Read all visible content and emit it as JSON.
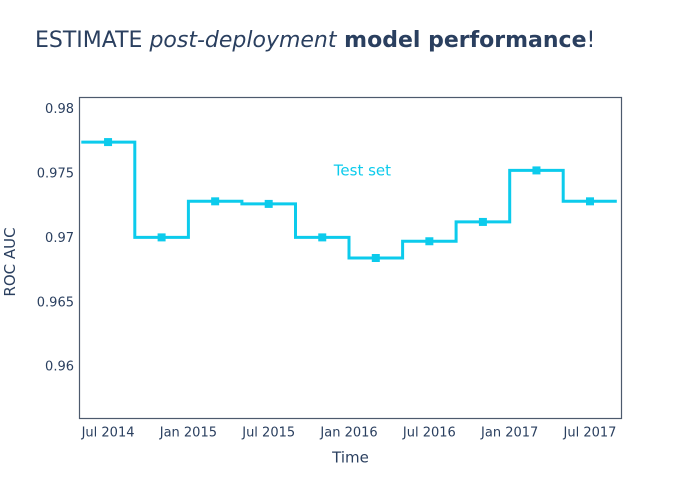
{
  "title": {
    "prefix": "ESTIMATE ",
    "italic": "post-deployment",
    "bold": " model performance",
    "suffix": "!",
    "color": "#2a3f5f"
  },
  "colors": {
    "line": "#0ccbec",
    "text": "#2a3f5f",
    "plot_border": "#4d5a6d",
    "background": "#ffffff"
  },
  "chart_data": {
    "type": "line",
    "line_shape": "step-hv",
    "marker": "square",
    "title": "",
    "xlabel": "Time",
    "ylabel": "ROC AUC",
    "grid": false,
    "legend": "none",
    "xlim_months_from_jul2014": [
      -2.17,
      38.39
    ],
    "ylim": [
      0.9559,
      0.9809
    ],
    "x_ticks": {
      "months_from_jul2014": [
        0,
        6,
        12,
        18,
        24,
        30,
        36
      ],
      "labels": [
        "Jul 2014",
        "Jan 2015",
        "Jul 2015",
        "Jan 2016",
        "Jul 2016",
        "Jan 2017",
        "Jul 2017"
      ]
    },
    "y_ticks": {
      "values": [
        0.98,
        0.975,
        0.97,
        0.965,
        0.96
      ],
      "labels": [
        "0.98",
        "0.975",
        "0.97",
        "0.965",
        "0.96"
      ]
    },
    "series": [
      {
        "name": "Test set",
        "color": "#0ccbec",
        "chunk_span_months": 4,
        "x_months_from_jul2014": [
          0,
          4,
          8,
          12,
          16,
          20,
          24,
          28,
          32,
          36
        ],
        "x_labels": [
          "Jul 2014",
          "Nov 2014",
          "Mar 2015",
          "Jul 2015",
          "Nov 2015",
          "Mar 2016",
          "Jul 2016",
          "Nov 2016",
          "Mar 2017",
          "Jul 2017"
        ],
        "values": [
          0.9774,
          0.97,
          0.9728,
          0.9726,
          0.97,
          0.9684,
          0.9697,
          0.9712,
          0.9752,
          0.9728
        ]
      }
    ],
    "annotation": {
      "text": "Test set",
      "x_month_from_jul2014": 19,
      "y": 0.9752,
      "color": "#0ccbec"
    }
  }
}
